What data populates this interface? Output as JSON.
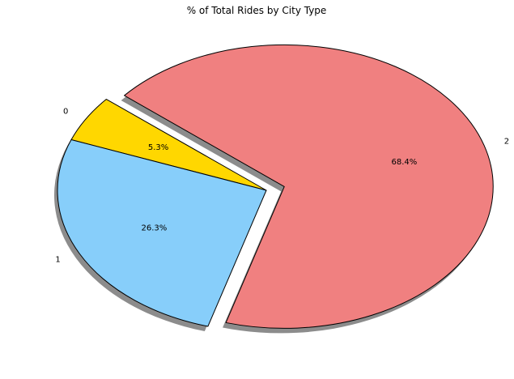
{
  "chart_data": {
    "type": "pie",
    "title": "% of Total Rides by City Type",
    "legend": "none",
    "shadow": true,
    "slices": [
      {
        "label": "0",
        "value": 5.3,
        "pct_label": "5.3%",
        "color": "#ffd700",
        "exploded": false
      },
      {
        "label": "1",
        "value": 26.3,
        "pct_label": "26.3%",
        "color": "#87cefa",
        "exploded": false
      },
      {
        "label": "2",
        "value": 68.4,
        "pct_label": "68.4%",
        "color": "#f08080",
        "exploded": true
      }
    ]
  }
}
